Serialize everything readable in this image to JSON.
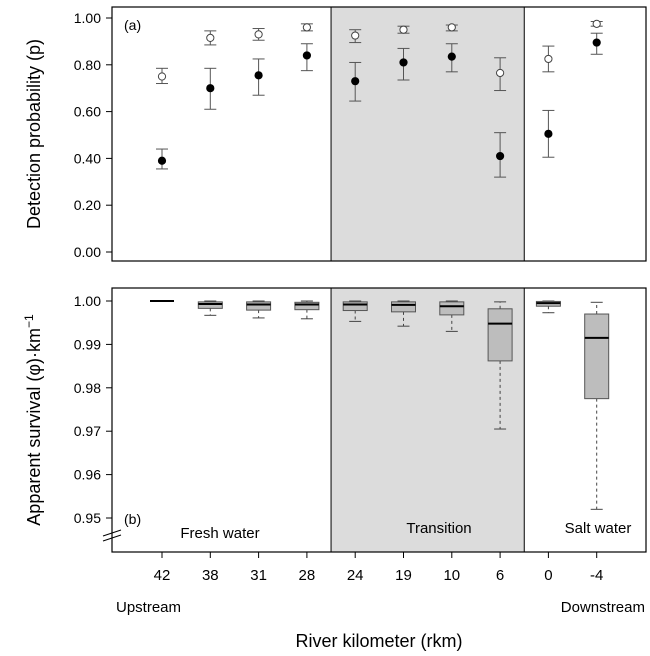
{
  "chart_data": [
    {
      "panel": "a",
      "type": "scatter",
      "panel_label": "(a)",
      "ylabel": "Detection probability (p)",
      "ylim": [
        0,
        1
      ],
      "yticks": [
        0,
        0.2,
        0.4,
        0.6,
        0.8,
        1.0
      ],
      "ytick_labels": [
        "0.00",
        "0.20",
        "0.40",
        "0.60",
        "0.80",
        "1.00"
      ],
      "categories": [
        "42",
        "38",
        "31",
        "28",
        "24",
        "19",
        "10",
        "6",
        "0",
        "-4"
      ],
      "shaded_region": [
        "24",
        "6"
      ],
      "series": [
        {
          "marker": "open-circle",
          "values": [
            0.75,
            0.915,
            0.93,
            0.96,
            0.925,
            0.95,
            0.96,
            0.765,
            0.825,
            0.975
          ],
          "lower": [
            0.72,
            0.885,
            0.905,
            0.945,
            0.895,
            0.935,
            0.945,
            0.69,
            0.77,
            0.965
          ],
          "upper": [
            0.785,
            0.945,
            0.955,
            0.975,
            0.95,
            0.965,
            0.97,
            0.83,
            0.88,
            0.985
          ]
        },
        {
          "marker": "filled-circle",
          "values": [
            0.39,
            0.7,
            0.755,
            0.84,
            0.73,
            0.81,
            0.835,
            0.41,
            0.505,
            0.895
          ],
          "lower": [
            0.355,
            0.61,
            0.67,
            0.775,
            0.645,
            0.735,
            0.77,
            0.32,
            0.405,
            0.845
          ],
          "upper": [
            0.44,
            0.785,
            0.825,
            0.89,
            0.81,
            0.87,
            0.89,
            0.51,
            0.605,
            0.935
          ]
        }
      ]
    },
    {
      "panel": "b",
      "type": "box",
      "panel_label": "(b)",
      "ylabel": "Apparent survival (φ)·km",
      "ylabel_sup": "−1",
      "ylim": [
        0.95,
        1.0
      ],
      "yticks": [
        0.95,
        0.96,
        0.97,
        0.98,
        0.99,
        1.0
      ],
      "ytick_labels": [
        "0.95",
        "0.96",
        "0.97",
        "0.98",
        "0.99",
        "1.00"
      ],
      "axis_break": true,
      "categories": [
        "42",
        "38",
        "31",
        "28",
        "24",
        "19",
        "10",
        "6",
        "0",
        "-4"
      ],
      "boxes": [
        {
          "min": 1.0,
          "q1": 1.0,
          "median": 1.0,
          "q3": 1.0,
          "max": 1.0
        },
        {
          "min": 0.9967,
          "q1": 0.9983,
          "median": 0.9993,
          "q3": 0.9998,
          "max": 1.0
        },
        {
          "min": 0.9961,
          "q1": 0.9979,
          "median": 0.9992,
          "q3": 0.9998,
          "max": 1.0
        },
        {
          "min": 0.9959,
          "q1": 0.998,
          "median": 0.9992,
          "q3": 0.9997,
          "max": 1.0
        },
        {
          "min": 0.9953,
          "q1": 0.9978,
          "median": 0.9992,
          "q3": 0.9998,
          "max": 1.0
        },
        {
          "min": 0.9942,
          "q1": 0.9975,
          "median": 0.9991,
          "q3": 0.9998,
          "max": 1.0
        },
        {
          "min": 0.993,
          "q1": 0.9968,
          "median": 0.9988,
          "q3": 0.9998,
          "max": 1.0
        },
        {
          "min": 0.9705,
          "q1": 0.9862,
          "median": 0.9948,
          "q3": 0.9982,
          "max": 0.9998
        },
        {
          "min": 0.9973,
          "q1": 0.9988,
          "median": 0.9995,
          "q3": 0.9999,
          "max": 1.0
        },
        {
          "min": 0.952,
          "q1": 0.9775,
          "median": 0.9915,
          "q3": 0.997,
          "max": 0.9997
        }
      ],
      "region_labels": [
        "Fresh water",
        "Transition",
        "Salt water"
      ]
    }
  ],
  "xlabel": "River kilometer (rkm)",
  "direction_labels": {
    "left": "Upstream",
    "right": "Downstream"
  },
  "colors": {
    "shade": "#dcdcdc",
    "box_fill": "#bdbdbd",
    "axis": "#000000",
    "whisker": "#444444"
  }
}
